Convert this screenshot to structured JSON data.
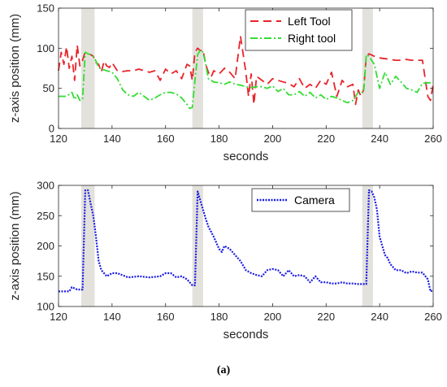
{
  "caption": "(a)",
  "chart_data": [
    {
      "type": "line",
      "xlabel": "seconds",
      "ylabel": "z-axis position (mm)",
      "xlim": [
        120,
        260
      ],
      "ylim": [
        0,
        150
      ],
      "xticks": [
        120,
        140,
        160,
        180,
        200,
        220,
        240,
        260
      ],
      "yticks": [
        0,
        50,
        100,
        150
      ],
      "legend_position": "top-right",
      "shaded_intervals": [
        [
          128.5,
          133.5
        ],
        [
          170,
          174
        ],
        [
          233.5,
          237.5
        ]
      ],
      "shaded_color": "#e3e1dc",
      "series": [
        {
          "name": "Left Tool",
          "color": "#e8232a",
          "style": "dashed",
          "x": [
            120,
            121,
            122,
            123,
            124,
            125,
            126,
            127,
            128,
            129,
            130,
            131,
            132,
            133,
            134,
            135,
            136,
            137,
            138,
            139,
            140,
            142,
            144,
            146,
            148,
            150,
            152,
            154,
            156,
            158,
            160,
            162,
            164,
            166,
            168,
            169,
            170,
            171,
            172,
            173,
            174,
            175,
            176,
            177,
            178,
            180,
            182,
            184,
            186,
            188,
            190,
            191,
            192,
            193,
            194,
            196,
            198,
            200,
            202,
            204,
            206,
            208,
            210,
            212,
            214,
            216,
            218,
            220,
            222,
            224,
            226,
            228,
            230,
            231,
            232,
            233,
            234,
            235,
            236,
            238,
            240,
            242,
            244,
            246,
            248,
            250,
            252,
            254,
            256,
            258,
            259,
            260
          ],
          "y": [
            72,
            95,
            80,
            102,
            75,
            90,
            60,
            104,
            78,
            85,
            96,
            93,
            92,
            90,
            82,
            80,
            70,
            84,
            78,
            76,
            82,
            72,
            71,
            72,
            72,
            74,
            72,
            70,
            72,
            60,
            74,
            68,
            72,
            62,
            80,
            78,
            60,
            95,
            100,
            97,
            98,
            80,
            70,
            64,
            72,
            68,
            75,
            70,
            62,
            115,
            70,
            40,
            68,
            30,
            65,
            60,
            55,
            62,
            60,
            58,
            56,
            52,
            62,
            50,
            55,
            50,
            60,
            55,
            70,
            40,
            60,
            52,
            55,
            30,
            48,
            40,
            48,
            90,
            93,
            90,
            88,
            87,
            86,
            85,
            85,
            86,
            85,
            85,
            85,
            40,
            35,
            55
          ]
        },
        {
          "name": "Right tool",
          "color": "#33dd33",
          "style": "dash-dot",
          "x": [
            120,
            123,
            125,
            126,
            127,
            128,
            129,
            130,
            131,
            132,
            133,
            134,
            135,
            136,
            138,
            140,
            142,
            144,
            146,
            148,
            150,
            152,
            154,
            156,
            158,
            160,
            162,
            164,
            166,
            168,
            169,
            170,
            171,
            172,
            173,
            174,
            175,
            176,
            177,
            178,
            180,
            182,
            184,
            186,
            188,
            190,
            192,
            194,
            196,
            198,
            200,
            202,
            204,
            206,
            208,
            210,
            212,
            214,
            216,
            218,
            220,
            222,
            224,
            226,
            228,
            230,
            232,
            233,
            234,
            235,
            236,
            238,
            240,
            242,
            244,
            246,
            248,
            250,
            252,
            254,
            256,
            258,
            260
          ],
          "y": [
            40,
            40,
            45,
            36,
            42,
            35,
            36,
            95,
            93,
            92,
            90,
            84,
            76,
            74,
            72,
            70,
            62,
            48,
            42,
            40,
            45,
            40,
            35,
            38,
            42,
            45,
            45,
            43,
            38,
            30,
            25,
            26,
            60,
            92,
            98,
            95,
            80,
            62,
            60,
            58,
            57,
            55,
            58,
            55,
            54,
            52,
            51,
            52,
            52,
            50,
            53,
            46,
            50,
            42,
            42,
            46,
            40,
            45,
            38,
            42,
            36,
            40,
            38,
            35,
            32,
            35,
            45,
            45,
            45,
            92,
            90,
            80,
            50,
            70,
            55,
            65,
            58,
            50,
            48,
            45,
            56,
            57,
            57
          ]
        }
      ]
    },
    {
      "type": "line",
      "xlabel": "seconds",
      "ylabel": "z-axis position (mm)",
      "xlim": [
        120,
        260
      ],
      "ylim": [
        100,
        300
      ],
      "xticks": [
        120,
        140,
        160,
        180,
        200,
        220,
        240,
        260
      ],
      "yticks": [
        100,
        150,
        200,
        250,
        300
      ],
      "legend_position": "top-right",
      "shaded_intervals": [
        [
          128.5,
          133.5
        ],
        [
          170,
          174
        ],
        [
          233.5,
          237.5
        ]
      ],
      "shaded_color": "#e3e1dc",
      "series": [
        {
          "name": "Camera",
          "color": "#1a1ae6",
          "style": "dotted",
          "x": [
            120,
            124,
            125,
            127,
            129,
            130,
            131,
            132,
            133,
            134,
            135,
            136,
            138,
            140,
            142,
            146,
            150,
            154,
            158,
            160,
            162,
            164,
            166,
            168,
            170,
            171,
            172,
            173,
            174,
            175,
            176,
            178,
            180,
            181,
            182,
            184,
            186,
            188,
            190,
            192,
            194,
            196,
            198,
            200,
            202,
            204,
            206,
            208,
            210,
            212,
            214,
            216,
            218,
            220,
            222,
            224,
            226,
            228,
            230,
            232,
            234,
            235,
            236,
            237,
            238,
            239,
            240,
            241,
            242,
            243,
            244,
            246,
            248,
            250,
            252,
            254,
            256,
            258,
            259,
            260
          ],
          "y": [
            125,
            125,
            132,
            128,
            128,
            292,
            292,
            270,
            250,
            215,
            175,
            160,
            150,
            155,
            155,
            148,
            150,
            148,
            150,
            155,
            155,
            148,
            150,
            145,
            135,
            135,
            290,
            275,
            260,
            245,
            232,
            215,
            195,
            190,
            200,
            195,
            185,
            175,
            160,
            155,
            152,
            150,
            160,
            162,
            160,
            150,
            160,
            150,
            152,
            150,
            140,
            150,
            140,
            140,
            138,
            138,
            140,
            138,
            138,
            137,
            137,
            137,
            292,
            290,
            280,
            260,
            215,
            200,
            185,
            180,
            170,
            160,
            160,
            155,
            158,
            156,
            156,
            145,
            125,
            127
          ]
        }
      ]
    }
  ]
}
